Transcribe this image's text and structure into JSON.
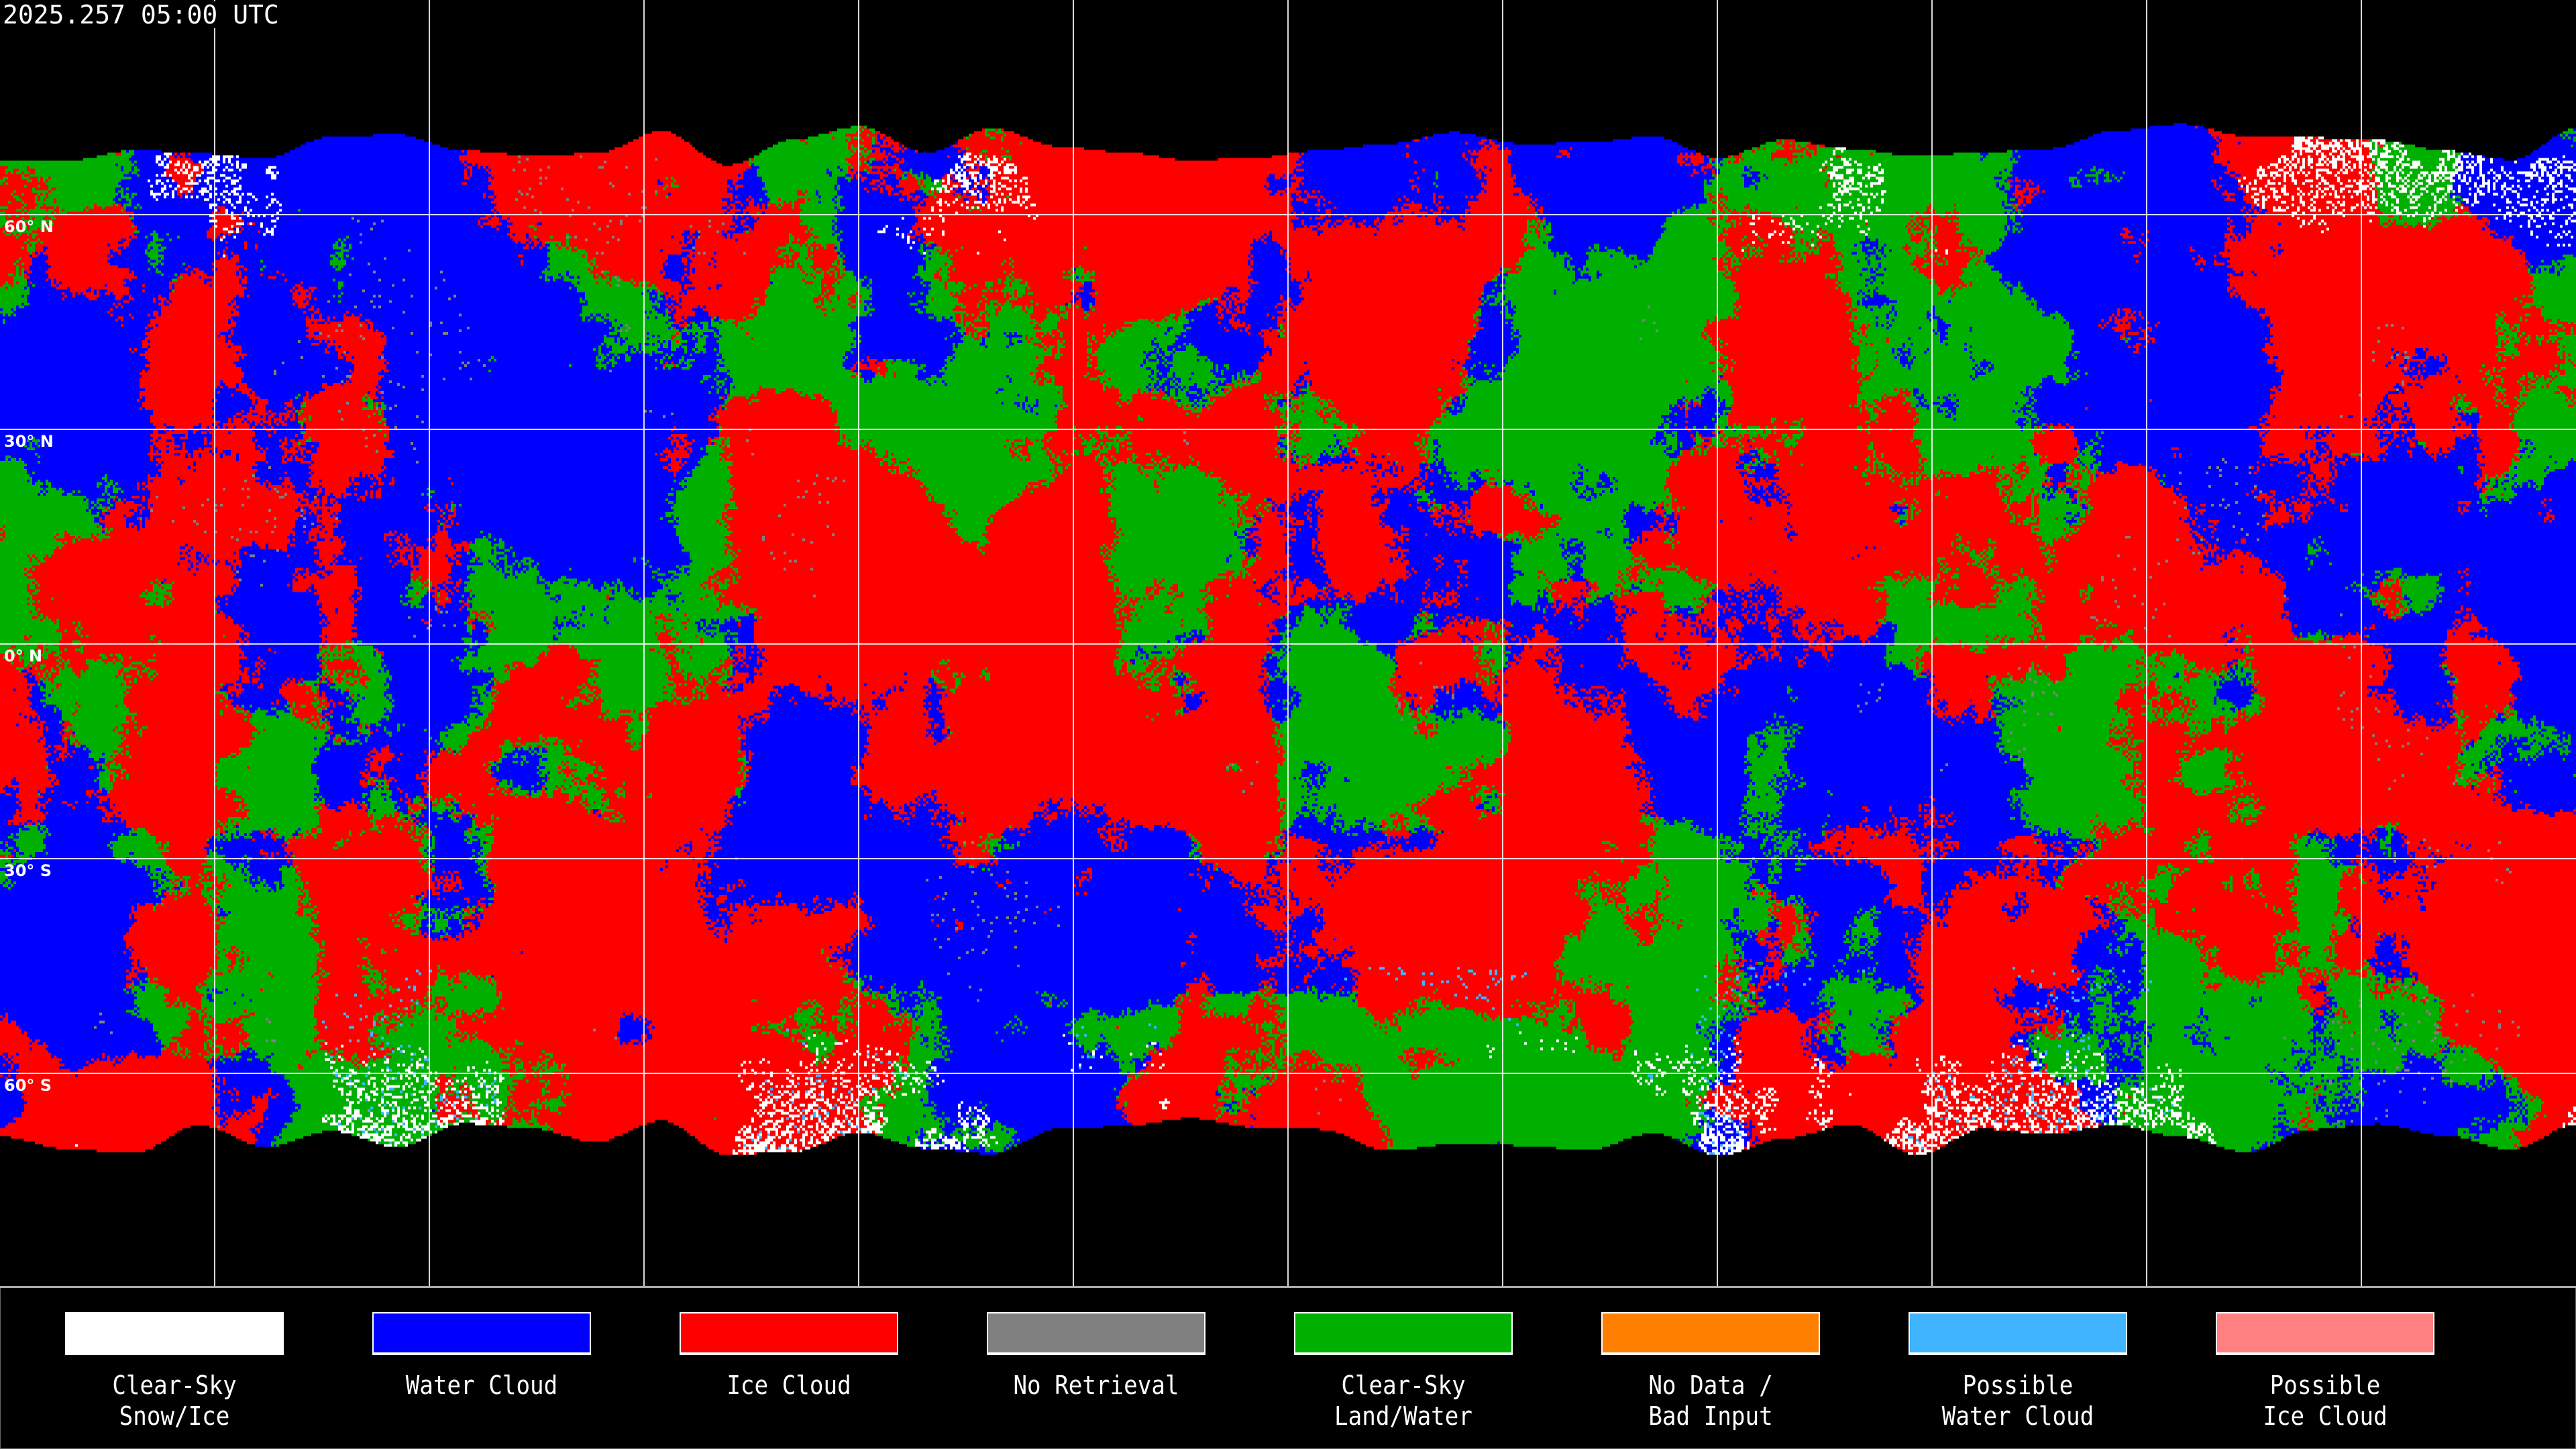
{
  "timestamp": "2025.257 05:00 UTC",
  "lat_labels": [
    "60° N",
    "30° N",
    "0° N",
    "30° S",
    "60° S"
  ],
  "legend": [
    {
      "line1": "Clear-Sky",
      "line2": "Snow/Ice",
      "color": "#ffffff"
    },
    {
      "line1": "Water Cloud",
      "line2": "",
      "color": "#0000ff"
    },
    {
      "line1": "Ice Cloud",
      "line2": "",
      "color": "#ff0000"
    },
    {
      "line1": "No Retrieval",
      "line2": "",
      "color": "#808080"
    },
    {
      "line1": "Clear-Sky",
      "line2": "Land/Water",
      "color": "#00b000"
    },
    {
      "line1": "No Data /",
      "line2": "Bad Input",
      "color": "#ff8000"
    },
    {
      "line1": "Possible",
      "line2": "Water Cloud",
      "color": "#40b4ff"
    },
    {
      "line1": "Possible",
      "line2": "Ice Cloud",
      "color": "#ff8080"
    }
  ]
}
